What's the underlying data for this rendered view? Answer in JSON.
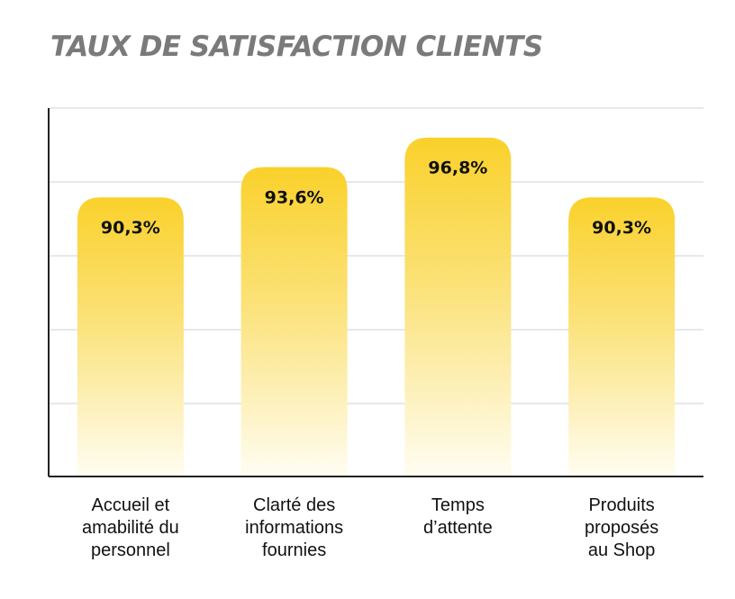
{
  "title": "TAUX DE SATISFACTION CLIENTS",
  "chart_data": {
    "type": "bar",
    "title": "TAUX DE SATISFACTION CLIENTS",
    "categories": [
      [
        "Accueil et",
        "amabilité du",
        "personnel"
      ],
      [
        "Clarté des",
        "informations",
        "fournies"
      ],
      [
        "Temps",
        "d’attente"
      ],
      [
        "Produits",
        "proposés",
        "au Shop"
      ]
    ],
    "values": [
      90.3,
      93.6,
      96.8,
      90.3
    ],
    "value_labels": [
      "90,3%",
      "93,6%",
      "96,8%",
      "90,3%"
    ],
    "ylim": [
      60,
      100
    ],
    "grid": true,
    "xlabel": "",
    "ylabel": "",
    "colors": {
      "bar_top": "#FAD12B",
      "bar_bottom": "#FFFDF2",
      "grid": "#E0E0E0",
      "axis": "#222222",
      "title": "#7A7A7A"
    }
  }
}
